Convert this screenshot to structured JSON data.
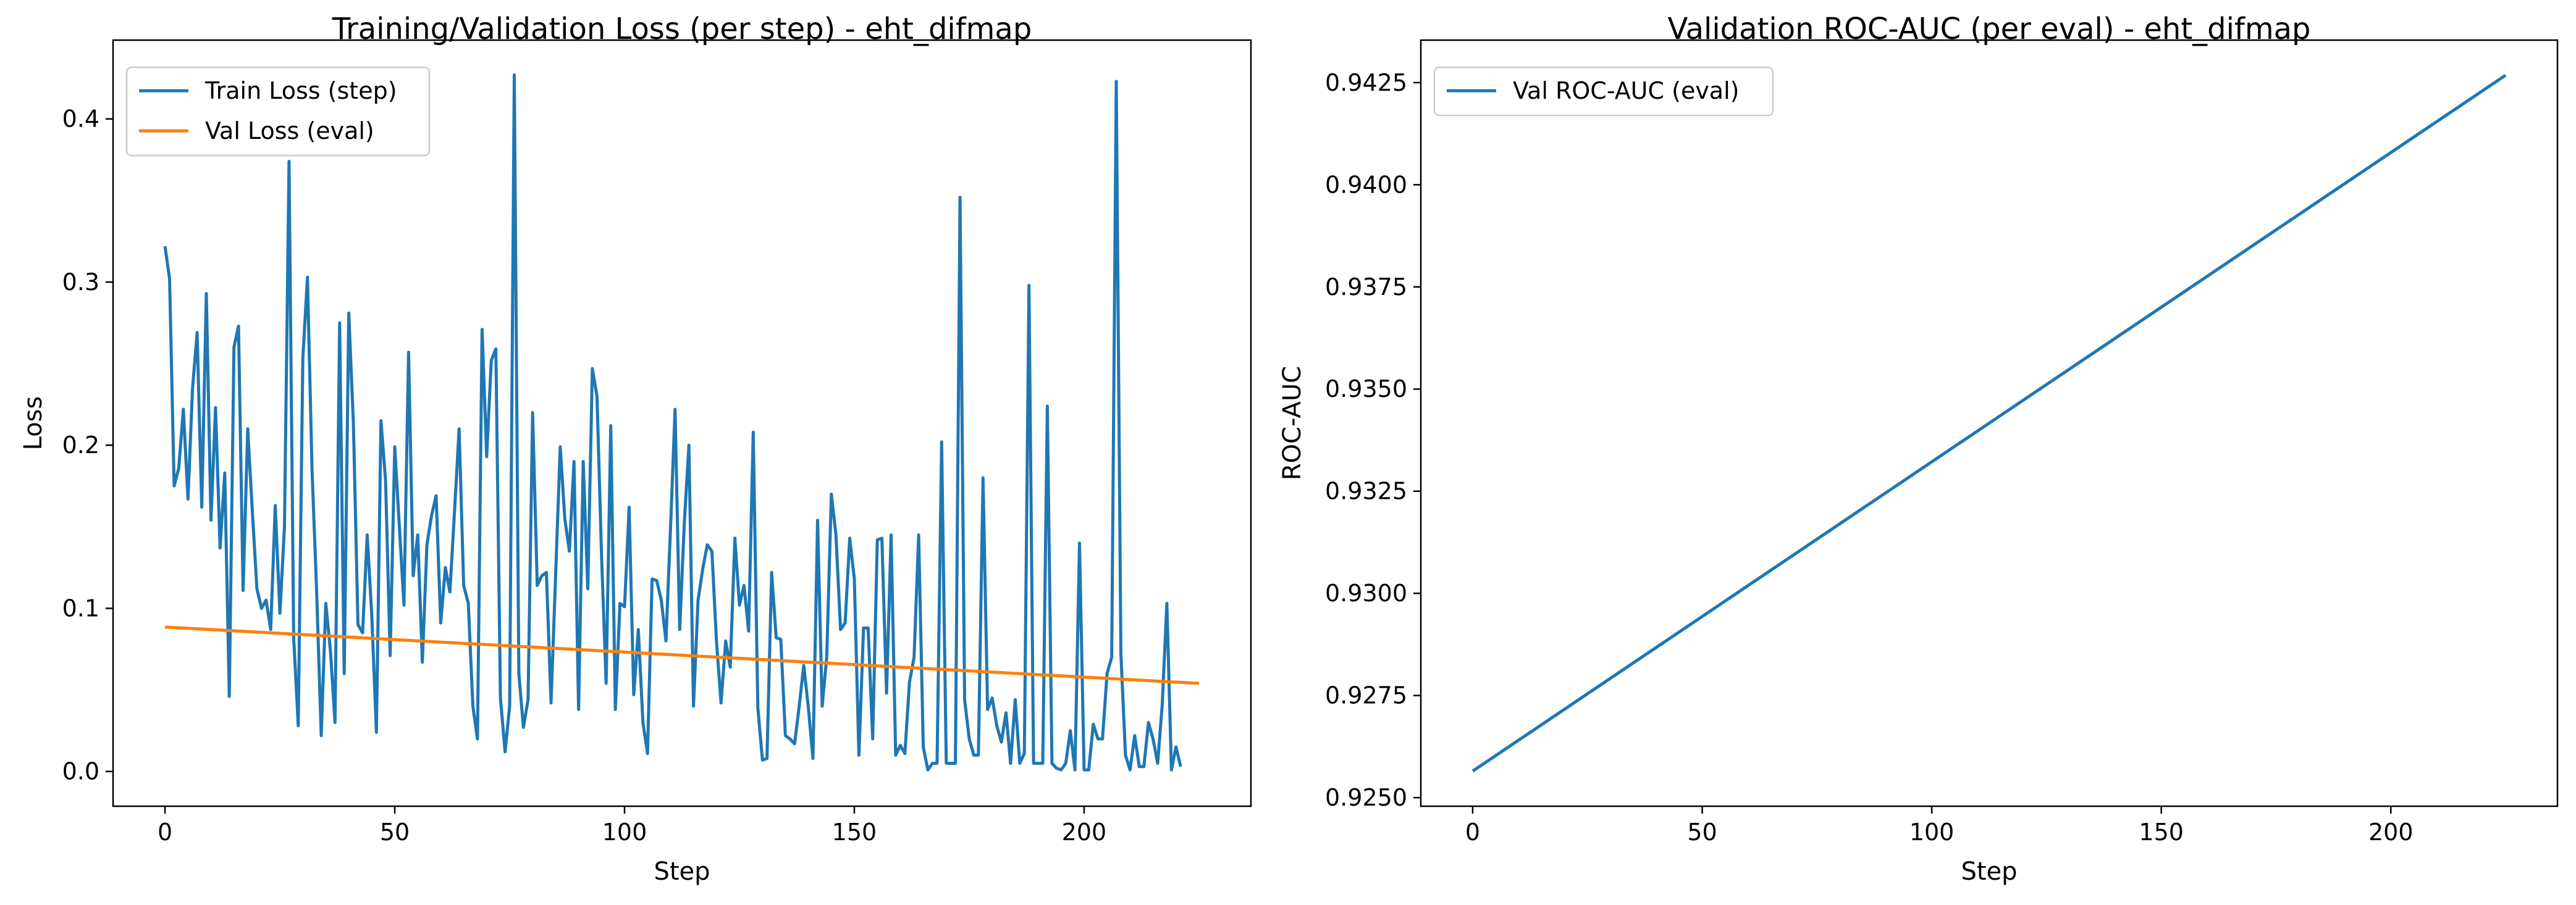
{
  "chart_data": [
    {
      "type": "line",
      "title": "Training/Validation Loss (per step) - eht_difmap",
      "xlabel": "Step",
      "ylabel": "Loss",
      "xlim": [
        -11.3,
        236.3
      ],
      "ylim": [
        -0.0213,
        0.4483
      ],
      "xticks": [
        0,
        50,
        100,
        150,
        200
      ],
      "yticks": [
        0.0,
        0.1,
        0.2,
        0.3,
        0.4
      ],
      "ytick_format": 1,
      "grid": false,
      "legend_position": "upper left",
      "series": [
        {
          "name": "Train Loss (step)",
          "color": "#1f77b4",
          "x_start": 0,
          "x_step": 1,
          "y": [
            0.322,
            0.302,
            0.175,
            0.186,
            0.222,
            0.167,
            0.235,
            0.269,
            0.162,
            0.293,
            0.154,
            0.223,
            0.137,
            0.183,
            0.046,
            0.26,
            0.273,
            0.111,
            0.21,
            0.16,
            0.112,
            0.1,
            0.105,
            0.087,
            0.163,
            0.097,
            0.15,
            0.374,
            0.082,
            0.028,
            0.253,
            0.303,
            0.185,
            0.11,
            0.022,
            0.103,
            0.074,
            0.03,
            0.275,
            0.06,
            0.281,
            0.213,
            0.09,
            0.085,
            0.145,
            0.096,
            0.024,
            0.215,
            0.178,
            0.071,
            0.199,
            0.15,
            0.102,
            0.257,
            0.12,
            0.145,
            0.067,
            0.139,
            0.157,
            0.169,
            0.091,
            0.125,
            0.11,
            0.159,
            0.21,
            0.114,
            0.103,
            0.04,
            0.02,
            0.271,
            0.193,
            0.252,
            0.259,
            0.045,
            0.012,
            0.04,
            0.427,
            0.06,
            0.027,
            0.044,
            0.22,
            0.114,
            0.12,
            0.122,
            0.042,
            0.12,
            0.199,
            0.155,
            0.135,
            0.19,
            0.038,
            0.19,
            0.112,
            0.247,
            0.23,
            0.132,
            0.054,
            0.212,
            0.038,
            0.103,
            0.101,
            0.162,
            0.047,
            0.087,
            0.03,
            0.011,
            0.118,
            0.117,
            0.105,
            0.08,
            0.149,
            0.222,
            0.087,
            0.152,
            0.2,
            0.04,
            0.105,
            0.124,
            0.139,
            0.135,
            0.08,
            0.042,
            0.08,
            0.064,
            0.143,
            0.102,
            0.114,
            0.086,
            0.208,
            0.039,
            0.007,
            0.008,
            0.122,
            0.082,
            0.081,
            0.022,
            0.02,
            0.017,
            0.04,
            0.065,
            0.039,
            0.008,
            0.154,
            0.04,
            0.07,
            0.17,
            0.145,
            0.087,
            0.091,
            0.143,
            0.118,
            0.01,
            0.088,
            0.088,
            0.02,
            0.142,
            0.143,
            0.048,
            0.145,
            0.01,
            0.016,
            0.011,
            0.055,
            0.07,
            0.145,
            0.015,
            0.001,
            0.005,
            0.005,
            0.202,
            0.005,
            0.005,
            0.005,
            0.352,
            0.044,
            0.02,
            0.01,
            0.01,
            0.18,
            0.038,
            0.045,
            0.028,
            0.018,
            0.036,
            0.005,
            0.044,
            0.005,
            0.011,
            0.298,
            0.005,
            0.005,
            0.005,
            0.224,
            0.005,
            0.002,
            0.001,
            0.005,
            0.025,
            0.001,
            0.14,
            0.001,
            0.001,
            0.029,
            0.02,
            0.02,
            0.06,
            0.07,
            0.423,
            0.072,
            0.01,
            0.001,
            0.022,
            0.003,
            0.003,
            0.03,
            0.02,
            0.005,
            0.041,
            0.103,
            0.001,
            0.015,
            0.003
          ]
        },
        {
          "name": "Val Loss (eval)",
          "color": "#ff7f0e",
          "x": [
            0,
            225
          ],
          "y": [
            0.0885,
            0.054
          ]
        }
      ]
    },
    {
      "type": "line",
      "title": "Validation ROC-AUC (per eval) - eht_difmap",
      "xlabel": "Step",
      "ylabel": "ROC-AUC",
      "xlim": [
        -11.3,
        236.3
      ],
      "ylim": [
        0.92479,
        0.94354
      ],
      "xticks": [
        0,
        50,
        100,
        150,
        200
      ],
      "yticks": [
        0.925,
        0.9275,
        0.93,
        0.9325,
        0.935,
        0.9375,
        0.94,
        0.9425
      ],
      "ytick_format": 4,
      "grid": false,
      "legend_position": "upper left",
      "series": [
        {
          "name": "Val ROC-AUC (eval)",
          "color": "#1f77b4",
          "x": [
            0,
            225
          ],
          "y": [
            0.92565,
            0.94268
          ]
        }
      ]
    }
  ]
}
